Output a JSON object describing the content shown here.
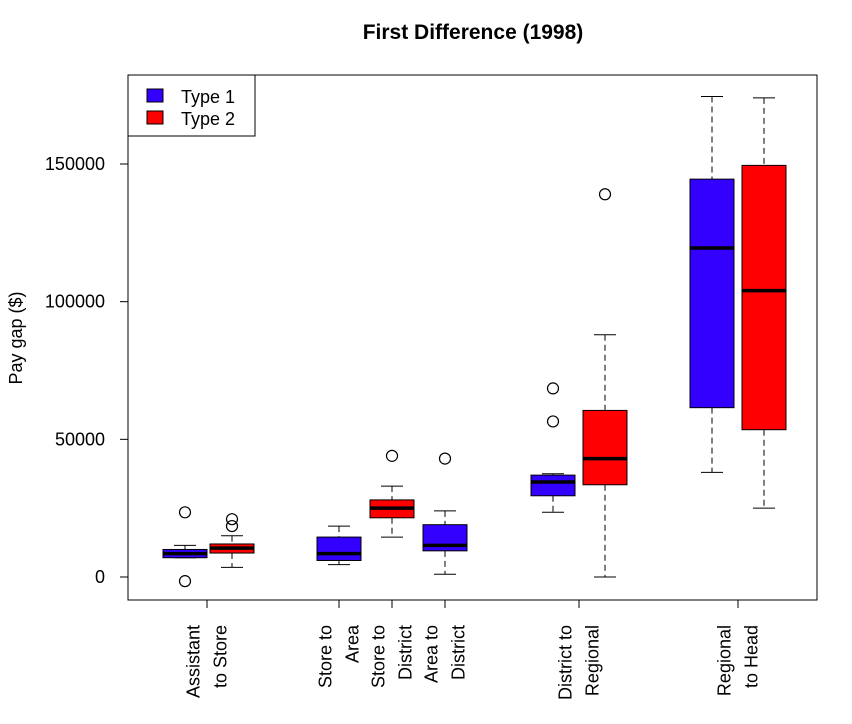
{
  "chart_data": {
    "type": "boxplot",
    "title": "First Difference (1998)",
    "xlabel": "",
    "ylabel": "Pay gap ($)",
    "ylim": [
      -8000,
      182000
    ],
    "y_ticks": [
      0,
      50000,
      100000,
      150000
    ],
    "y_tick_labels": [
      "0",
      "50000",
      "100000",
      "150000"
    ],
    "grid": false,
    "legend": {
      "position": "top-left",
      "entries": [
        {
          "name": "Type 1",
          "color": "#3300ff"
        },
        {
          "name": "Type 2",
          "color": "#ff0000"
        }
      ]
    },
    "groups": [
      {
        "label_lines": [
          "Assistant",
          "to Store"
        ]
      },
      {
        "label_lines": [
          "Store to",
          "Area"
        ]
      },
      {
        "label_lines": [
          "Store to",
          "District"
        ]
      },
      {
        "label_lines": [
          "Area to",
          "District"
        ]
      },
      {
        "label_lines": [
          "District to",
          "Regional"
        ]
      },
      {
        "label_lines": [
          "Regional",
          "to Head"
        ]
      }
    ],
    "boxes": [
      {
        "series": "Type 1",
        "whisker_low": 7000,
        "q1": 7000,
        "median": 8500,
        "q3": 10000,
        "whisker_high": 11500,
        "outliers": [
          23500,
          -1500
        ]
      },
      {
        "series": "Type 2",
        "whisker_low": 3500,
        "q1": 8700,
        "median": 10500,
        "q3": 12000,
        "whisker_high": 15000,
        "outliers": [
          18500,
          21000
        ]
      },
      {
        "series": "Type 1",
        "whisker_low": 4500,
        "q1": 6000,
        "median": 8500,
        "q3": 14500,
        "whisker_high": 18500,
        "outliers": []
      },
      {
        "series": "Type 2",
        "whisker_low": 14500,
        "q1": 21500,
        "median": 25000,
        "q3": 28000,
        "whisker_high": 33000,
        "outliers": [
          44000
        ]
      },
      {
        "series": "Type 1",
        "whisker_low": 1000,
        "q1": 9500,
        "median": 11500,
        "q3": 19000,
        "whisker_high": 24000,
        "outliers": [
          43000
        ]
      },
      {
        "series": "Type 1",
        "whisker_low": 23500,
        "q1": 29500,
        "median": 34500,
        "q3": 37000,
        "whisker_high": 37500,
        "outliers": [
          56500,
          68500
        ]
      },
      {
        "series": "Type 2",
        "whisker_low": 0,
        "q1": 33500,
        "median": 43000,
        "q3": 60500,
        "whisker_high": 88000,
        "outliers": [
          139000
        ]
      },
      {
        "series": "Type 1",
        "whisker_low": 38000,
        "q1": 61500,
        "median": 119500,
        "q3": 144500,
        "whisker_high": 174500,
        "outliers": []
      },
      {
        "series": "Type 2",
        "whisker_low": 25000,
        "q1": 53500,
        "median": 104000,
        "q3": 149500,
        "whisker_high": 174000,
        "outliers": []
      }
    ]
  }
}
